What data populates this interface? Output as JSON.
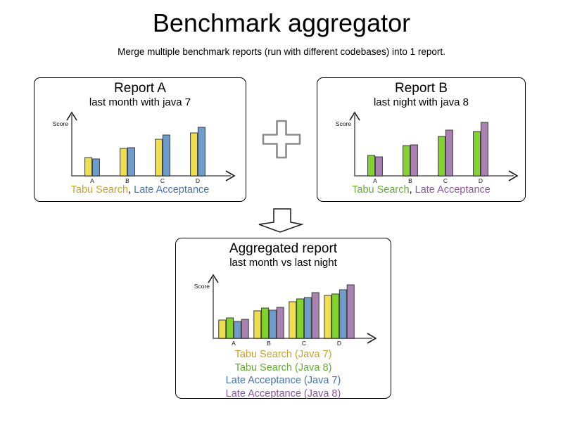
{
  "page": {
    "title": "Benchmark aggregator",
    "subtitle": "Merge multiple benchmark reports (run with different codebases) into 1 report."
  },
  "legend_separator": ", ",
  "icons": {
    "plus": "plus-outline",
    "down_arrow": "down-arrow-outline"
  },
  "colors": {
    "axis": "#7F7F7F",
    "arrowhead": "#1a1a1a",
    "bar_outline": "#3A3A3A",
    "tabu_java7_fill": "#F0DF4D",
    "tabu_java8_fill": "#83D32F",
    "late_java7_fill": "#6E9DCB",
    "late_java8_fill": "#A882B0"
  },
  "charts": {
    "reportA": {
      "type": "bar",
      "title": "Report A",
      "subtitle": "last month with java 7",
      "ylabel": "Score",
      "categories": [
        "A",
        "B",
        "C",
        "D"
      ],
      "series": [
        {
          "name": "Tabu Search",
          "color": "#F0DF4D",
          "text_color": "#C9A227",
          "values": [
            26,
            39,
            52,
            61
          ]
        },
        {
          "name": "Late Acceptance",
          "color": "#6E9DCB",
          "text_color": "#4472B8",
          "values": [
            24,
            40,
            58,
            69
          ]
        }
      ]
    },
    "reportB": {
      "type": "bar",
      "title": "Report B",
      "subtitle": "last night with java 8",
      "ylabel": "Score",
      "categories": [
        "A",
        "B",
        "C",
        "D"
      ],
      "series": [
        {
          "name": "Tabu Search",
          "color": "#83D32F",
          "text_color": "#5FAE2E",
          "values": [
            29,
            43,
            56,
            63
          ]
        },
        {
          "name": "Late Acceptance",
          "color": "#A882B0",
          "text_color": "#8A56A0",
          "values": [
            27,
            44,
            65,
            76
          ]
        }
      ]
    },
    "aggregated": {
      "type": "bar",
      "title": "Aggregated report",
      "subtitle": "last month vs last night",
      "ylabel": "Score",
      "categories": [
        "A",
        "B",
        "C",
        "D"
      ],
      "series": [
        {
          "name": "Tabu Search (Java 7)",
          "color": "#F0DF4D",
          "text_color": "#C9A227",
          "values": [
            26,
            39,
            52,
            61
          ]
        },
        {
          "name": "Tabu Search (Java 8)",
          "color": "#83D32F",
          "text_color": "#5FAE2E",
          "values": [
            29,
            43,
            56,
            63
          ]
        },
        {
          "name": "Late Acceptance (Java 7)",
          "color": "#6E9DCB",
          "text_color": "#4472B8",
          "values": [
            24,
            40,
            58,
            69
          ]
        },
        {
          "name": "Late Acceptance (Java 8)",
          "color": "#A882B0",
          "text_color": "#8A56A0",
          "values": [
            27,
            44,
            65,
            76
          ]
        }
      ]
    }
  }
}
